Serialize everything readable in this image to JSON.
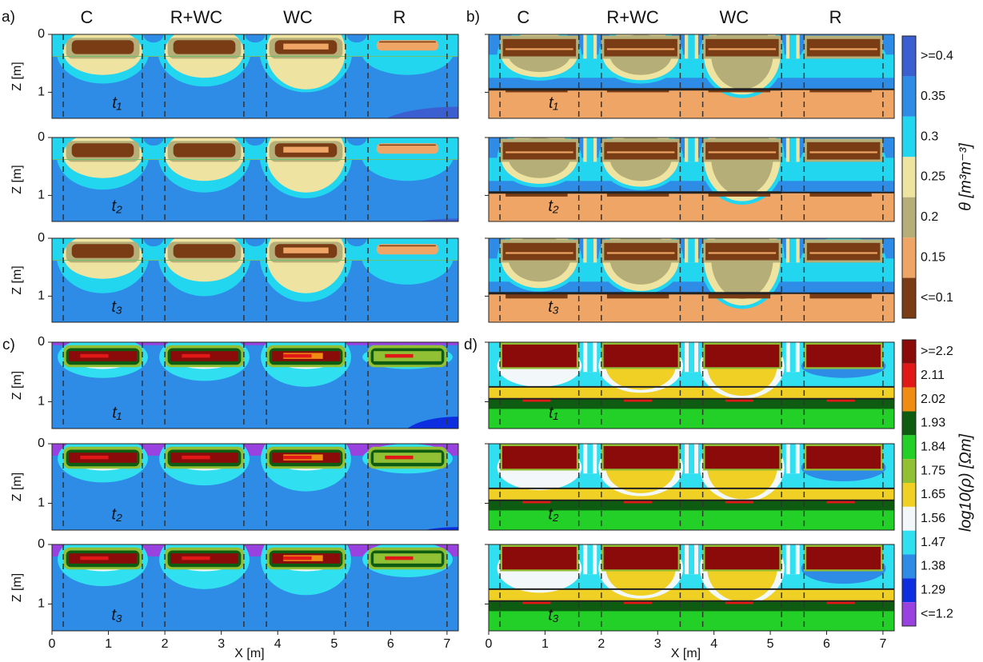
{
  "panel_labels": [
    "a)",
    "b)",
    "c)",
    "d)"
  ],
  "column_labels": [
    "C",
    "R+WC",
    "WC",
    "R"
  ],
  "time_labels": [
    "t₁",
    "t₂",
    "t₃"
  ],
  "axes": {
    "z_label": "Z [m]",
    "x_label": "X [m]",
    "zticks": [
      0,
      1
    ],
    "xlim": [
      0,
      7.2
    ],
    "xticks": [
      0,
      1,
      2,
      3,
      4,
      5,
      6,
      7
    ]
  },
  "colorbars": [
    {
      "title": "θ [m³m⁻³]",
      "levels": [
        {
          "label": ">=0.4",
          "color": "#3b5fd0"
        },
        {
          "label": "0.35",
          "color": "#2e8be6"
        },
        {
          "label": "0.3",
          "color": "#22d6f0"
        },
        {
          "label": "0.25",
          "color": "#eee3a0"
        },
        {
          "label": "0.2",
          "color": "#b5ae78"
        },
        {
          "label": "0.15",
          "color": "#eea566"
        },
        {
          "label": "<=0.1",
          "color": "#7a3c14"
        }
      ]
    },
    {
      "title": "log10(ρ) [Ωm]",
      "levels": [
        {
          "label": ">=2.2",
          "color": "#8b0b0b"
        },
        {
          "label": "2.11",
          "color": "#e01818"
        },
        {
          "label": "2.02",
          "color": "#f08c14"
        },
        {
          "label": "1.93",
          "color": "#0d5c12"
        },
        {
          "label": "1.84",
          "color": "#22d028"
        },
        {
          "label": "1.75",
          "color": "#92c034"
        },
        {
          "label": "1.65",
          "color": "#f0d024"
        },
        {
          "label": "1.56",
          "color": "#f2f8fa"
        },
        {
          "label": "1.47",
          "color": "#30e0f0"
        },
        {
          "label": "1.38",
          "color": "#2e8be6"
        },
        {
          "label": "1.29",
          "color": "#0c2ee0"
        },
        {
          "label": "<=1.2",
          "color": "#9a42e0"
        }
      ]
    }
  ]
}
